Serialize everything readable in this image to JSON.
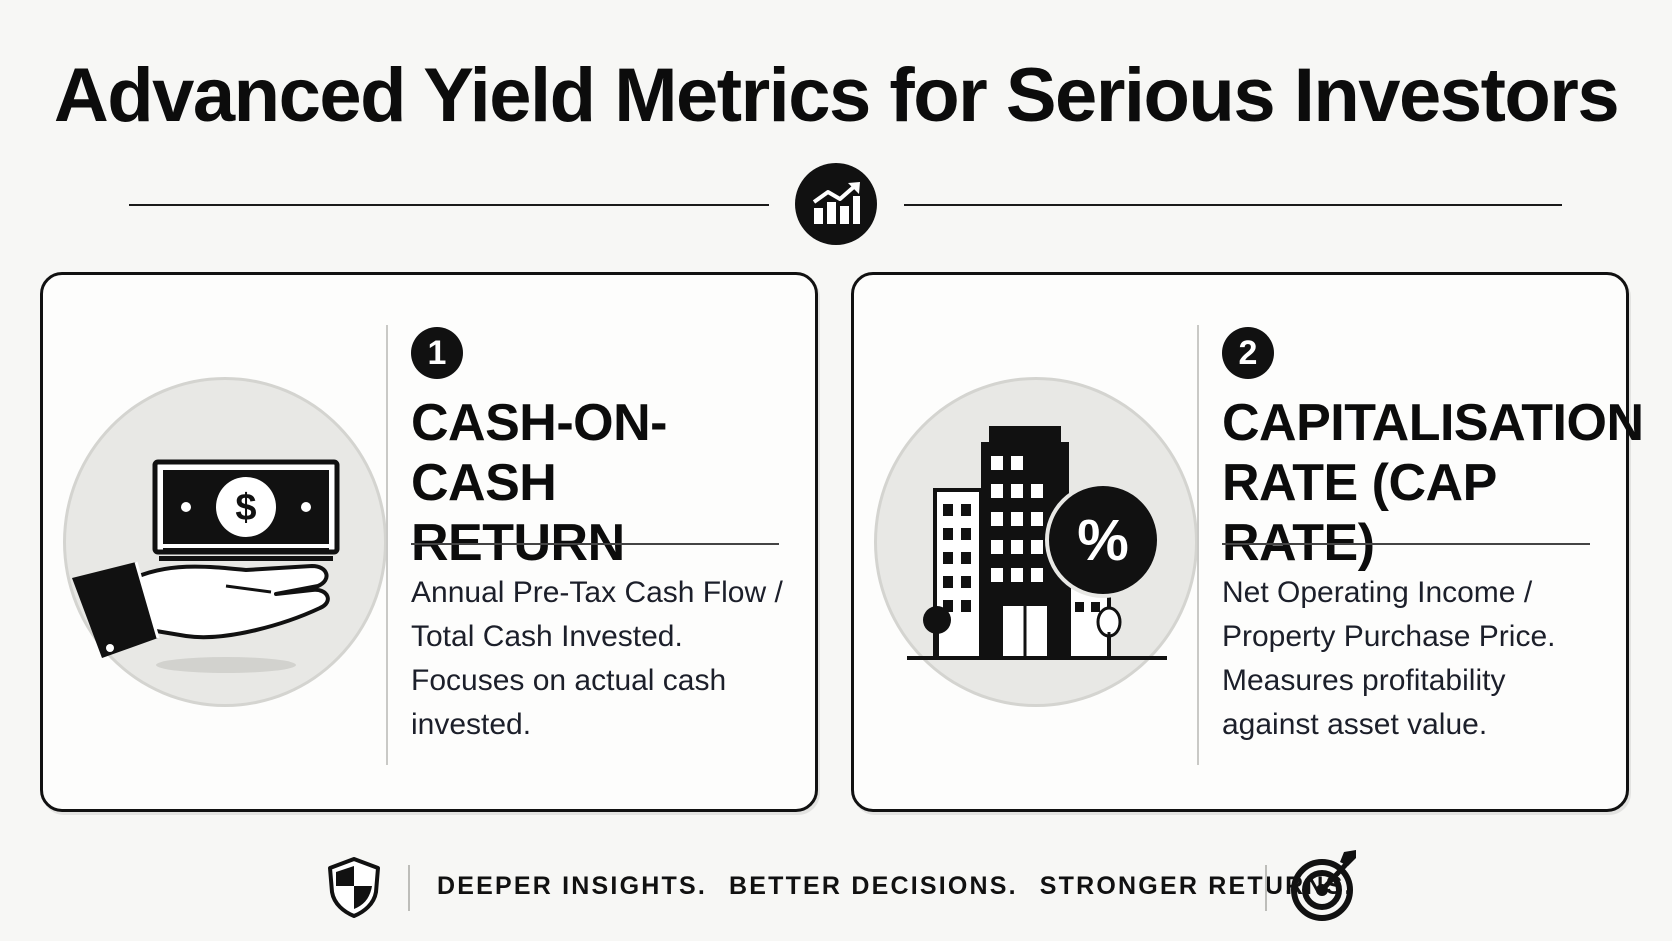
{
  "title": "Advanced Yield Metrics for Serious Investors",
  "divider_icon": "growth-chart-icon",
  "cards": [
    {
      "number": "1",
      "title_line1": "CASH-ON-CASH",
      "title_line2": "RETURN",
      "desc_lines": [
        "Annual Pre-Tax Cash Flow /",
        "Total Cash Invested.",
        "Focuses on actual cash",
        "invested."
      ],
      "illustration_icon": "hand-holding-money-icon"
    },
    {
      "number": "2",
      "title_line1": "CAPITALISATION",
      "title_line2": "RATE (CAP RATE)",
      "desc_lines": [
        "Net Operating Income /",
        "Property Purchase Price.",
        "Measures profitability",
        "against asset value."
      ],
      "illustration_icon": "building-percent-icon"
    }
  ],
  "footer": {
    "left_icon": "shield-icon",
    "right_icon": "target-icon",
    "taglines": [
      "DEEPER INSIGHTS.",
      "BETTER DECISIONS.",
      "STRONGER RETURNS."
    ]
  }
}
